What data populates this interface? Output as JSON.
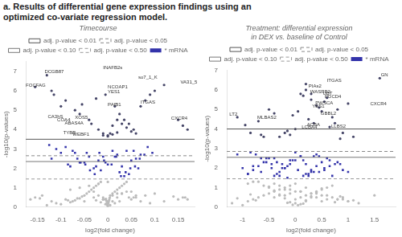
{
  "chart_data": [
    {
      "type": "scatter",
      "title": "a. Results of differential gene expression findings using an\noptimized co-variate regression model.",
      "subtitle": "Timecourse",
      "xlabel": "log2(fold change)",
      "ylabel": "-log10(p-values)",
      "xlim": [
        -0.175,
        0.185
      ],
      "ylim": [
        0,
        7.5
      ],
      "xticks": [
        -0.15,
        -0.1,
        -0.05,
        0,
        0.05,
        0.1,
        0.15
      ],
      "yticks": [
        0,
        1,
        2,
        3,
        4,
        5,
        6,
        7
      ],
      "grid": false,
      "legend": "top",
      "series": [
        {
          "color": "#BBBBBB",
          "marker": "circle",
          "x": [
            -0.155,
            -0.145,
            -0.13,
            -0.12,
            -0.11,
            -0.1,
            -0.09,
            -0.085,
            -0.08,
            -0.075,
            -0.07,
            -0.065,
            -0.06,
            -0.055,
            -0.05,
            -0.045,
            -0.04,
            -0.035,
            -0.03,
            -0.025,
            -0.02,
            -0.015,
            -0.01,
            -0.005,
            0.0,
            0.005,
            0.01,
            0.015,
            0.02,
            0.025,
            0.03,
            0.035,
            0.04,
            0.045,
            0.05,
            0.055,
            0.06,
            0.07,
            0.08,
            0.09,
            0.1,
            0.12,
            0.15,
            0.16,
            -0.08,
            -0.06,
            -0.04,
            -0.02,
            0.0,
            0.02,
            0.04,
            0.06,
            -0.03,
            -0.01,
            0.01,
            0.03,
            0.05,
            -0.05,
            0.0,
            0.01,
            -0.01,
            0.02,
            -0.02,
            0.03,
            -0.03,
            0.005,
            -0.005,
            0.015,
            -0.015,
            0.025,
            -0.025,
            0.0,
            0.0,
            -0.001,
            0.001,
            -0.002,
            0.002,
            -0.003,
            0.003,
            -0.004,
            0.004,
            0.17,
            -0.165,
            0.165,
            0.14,
            -0.14
          ],
          "values": [
            0.5,
            0.45,
            0.1,
            0.3,
            0.2,
            0.15,
            0.4,
            0.35,
            0.25,
            0.3,
            0.35,
            0.45,
            0.45,
            0.55,
            0.6,
            0.7,
            0.8,
            0.9,
            1.0,
            1.1,
            1.2,
            1.3,
            0.5,
            0.4,
            0.3,
            0.6,
            0.7,
            0.8,
            0.9,
            1.0,
            1.1,
            1.2,
            1.3,
            0.5,
            0.4,
            0.5,
            0.5,
            0.3,
            0.6,
            0.2,
            0.7,
            0.3,
            0.4,
            0.5,
            0.9,
            1.0,
            1.1,
            1.2,
            1.3,
            0.7,
            0.8,
            0.6,
            0.5,
            0.4,
            0.6,
            0.7,
            0.8,
            0.3,
            0.2,
            0.3,
            0.4,
            0.5,
            0.6,
            0.7,
            0.8,
            0.1,
            0.15,
            0.2,
            0.25,
            0.3,
            0.35,
            0.05,
            0.08,
            0.12,
            0.18,
            0.22,
            0.28,
            0.32,
            0.38,
            0.42,
            0.48,
            0.4,
            0.4,
            0.5,
            0.55,
            0.6
          ]
        },
        {
          "name": "* mRNA",
          "color": "#3333AA",
          "marker": "square",
          "x": [
            -0.12,
            -0.1,
            -0.08,
            -0.06,
            -0.04,
            -0.02,
            0.0,
            0.02,
            0.04,
            0.06,
            -0.09,
            -0.07,
            -0.05,
            -0.03,
            -0.01,
            0.01,
            0.03,
            0.05,
            0.07,
            -0.11,
            -0.085,
            -0.065,
            -0.045,
            -0.025,
            -0.005,
            0.015,
            0.035,
            0.055,
            0.025,
            0.045,
            -0.015,
            0.065,
            0.008,
            -0.008,
            0.018,
            -0.018,
            0.028,
            -0.028,
            0.038,
            -0.038,
            0.048,
            0.058,
            -0.048,
            -0.058,
            0.068,
            0.078,
            -0.125,
            0.085,
            -0.075,
            0.095
          ],
          "values": [
            2.5,
            2.8,
            2.1,
            2.3,
            2.6,
            2.4,
            2.2,
            2.7,
            2.9,
            2.5,
            3.1,
            2.8,
            2.3,
            2.0,
            2.6,
            2.9,
            2.1,
            2.4,
            2.7,
            3.0,
            2.2,
            2.5,
            2.8,
            2.1,
            2.3,
            2.6,
            1.6,
            2.9,
            1.8,
            1.7,
            1.9,
            2.0,
            2.2,
            2.4,
            2.6,
            2.8,
            1.6,
            1.7,
            1.8,
            1.9,
            2.0,
            2.1,
            2.2,
            2.3,
            2.5,
            2.7,
            3.2,
            3.1,
            2.9,
            2.8
          ]
        },
        {
          "color": "#444466",
          "marker": "circle",
          "x": [
            -0.155,
            -0.13,
            -0.12,
            -0.115,
            -0.1,
            -0.09,
            -0.07,
            -0.06,
            -0.055,
            -0.04,
            -0.035,
            -0.02,
            -0.01,
            0.0,
            0.005,
            0.01,
            0.02,
            0.03,
            0.04,
            0.05,
            0.06,
            0.07,
            0.08,
            0.09,
            0.1,
            0.12,
            0.15,
            0.16,
            0.17,
            -0.025,
            -0.005,
            0.015,
            0.025,
            0.035,
            0.045,
            0.055,
            0.0,
            0.01,
            -0.01,
            0.02
          ],
          "values": [
            6.2,
            6.8,
            6.0,
            5.8,
            5.2,
            5.5,
            5.0,
            4.8,
            5.3,
            4.5,
            4.3,
            4.0,
            3.8,
            3.7,
            3.8,
            4.2,
            4.5,
            4.3,
            4.1,
            3.9,
            3.8,
            5.2,
            5.5,
            5.8,
            6.0,
            6.3,
            4.5,
            4.2,
            4.0,
            5.6,
            5.8,
            5.2,
            4.8,
            4.5,
            4.3,
            4.0,
            3.65,
            3.75,
            3.7,
            3.85
          ]
        },
        {
          "name": "adj. p-value < 0.01",
          "type": "hline",
          "color": "#555555",
          "line_style": "solid",
          "values": [
            3.5
          ]
        },
        {
          "name": "adj. p-value < 0.05",
          "type": "hline",
          "color": "#888888",
          "line_style": "dashed",
          "values": [
            2.65
          ]
        },
        {
          "name": "adj. p-value < 0.10",
          "type": "hline",
          "color": "#777777",
          "line_style": "solid",
          "values": [
            2.35
          ]
        },
        {
          "name": "adj. p-value < 0.50",
          "type": "hline",
          "color": "#999999",
          "line_style": "dashed",
          "values": [
            1.45
          ]
        }
      ],
      "annotations": [
        {
          "text": "INAFB2s",
          "x": -0.01,
          "y": 7.05
        },
        {
          "text": "DCGB87",
          "x": -0.135,
          "y": 6.85
        },
        {
          "text": "so7_1_K",
          "x": 0.065,
          "y": 6.55
        },
        {
          "text": "VA31_5",
          "x": 0.155,
          "y": 6.3
        },
        {
          "text": "FOCFAG",
          "x": -0.175,
          "y": 6.15
        },
        {
          "text": "NCOAP1",
          "x": 0.0,
          "y": 6.05
        },
        {
          "text": "YES1",
          "x": 0.0,
          "y": 5.8
        },
        {
          "text": "ITGAS",
          "x": 0.07,
          "y": 5.3
        },
        {
          "text": "PAfB1",
          "x": 0.0,
          "y": 5.15
        },
        {
          "text": "CXCR4",
          "x": 0.135,
          "y": 4.45
        },
        {
          "text": "TYBB",
          "x": -0.095,
          "y": 3.72
        },
        {
          "text": "WEBF1",
          "x": -0.075,
          "y": 3.62
        },
        {
          "text": "CA3hS",
          "x": -0.128,
          "y": 4.55
        },
        {
          "text": "COA4",
          "x": -0.108,
          "y": 4.35
        },
        {
          "text": "ABAS4A",
          "x": -0.092,
          "y": 4.2
        },
        {
          "text": "XOS5",
          "x": -0.07,
          "y": 4.5
        }
      ]
    },
    {
      "type": "scatter",
      "subtitle": "Treatment: differential expression\nin DEX vs. baseline of Control",
      "xlabel": "log2(fold change)",
      "ylabel": "-log10(p-values)",
      "xlim": [
        -1.3,
        1.9
      ],
      "ylim": [
        0,
        7.0
      ],
      "xticks": [
        -1,
        -0.5,
        0,
        0.5,
        1,
        1.5
      ],
      "yticks": [
        0,
        1,
        2,
        3,
        4,
        5,
        6,
        7
      ],
      "grid": false,
      "legend": "top",
      "series": [
        {
          "color": "#BBBBBB",
          "marker": "circle",
          "x": [
            -1.2,
            -1.0,
            -0.9,
            -0.8,
            -0.7,
            -0.6,
            -0.5,
            -0.4,
            -0.3,
            -0.2,
            -0.1,
            0.0,
            0.1,
            0.2,
            0.3,
            0.4,
            0.5,
            0.6,
            0.7,
            0.8,
            0.9,
            1.0,
            1.2,
            1.5,
            -0.9,
            -0.7,
            -0.5,
            -0.3,
            -0.1,
            0.1,
            0.3,
            0.5,
            0.7,
            0.9,
            -0.8,
            -0.6,
            -0.4,
            -0.2,
            0.0,
            0.2,
            0.4,
            0.6,
            0.8,
            1.0,
            -0.4,
            -0.2,
            0.0,
            0.2,
            0.4,
            0.6,
            -0.3,
            -0.1,
            0.1,
            0.3,
            0.5,
            0.0,
            0.1,
            -0.1,
            0.2,
            -0.2,
            0.3,
            -0.3,
            0.4,
            -0.4,
            0.5,
            -0.5,
            0.05,
            -0.05,
            0.15,
            -0.15,
            1.1,
            -1.1,
            0.85,
            -0.85,
            0.75,
            -0.75
          ],
          "values": [
            0.2,
            0.1,
            0.3,
            0.4,
            0.5,
            0.6,
            0.7,
            0.8,
            0.9,
            1.0,
            1.1,
            1.2,
            0.5,
            0.6,
            0.7,
            0.8,
            0.9,
            1.0,
            1.1,
            0.4,
            0.5,
            0.3,
            0.2,
            0.6,
            1.2,
            1.3,
            1.0,
            1.1,
            0.9,
            0.8,
            0.7,
            0.6,
            0.5,
            0.4,
            1.3,
            1.1,
            1.2,
            0.9,
            0.8,
            1.0,
            0.7,
            0.6,
            0.4,
            0.3,
            0.5,
            0.6,
            0.4,
            0.3,
            0.5,
            0.4,
            0.6,
            0.7,
            0.8,
            0.5,
            0.3,
            0.2,
            0.15,
            0.25,
            0.35,
            0.45,
            0.55,
            0.65,
            0.75,
            0.85,
            0.95,
            1.05,
            0.1,
            0.12,
            0.18,
            0.22,
            0.35,
            0.45,
            0.55,
            0.65,
            0.25,
            0.35
          ]
        },
        {
          "name": "* mRNA",
          "color": "#3333AA",
          "marker": "square",
          "x": [
            -1.1,
            -0.9,
            -0.8,
            -0.7,
            -0.6,
            -0.5,
            -0.4,
            -0.3,
            -0.2,
            -0.1,
            0.0,
            0.1,
            0.2,
            0.3,
            0.4,
            0.5,
            0.6,
            0.7,
            -0.85,
            -0.65,
            -0.45,
            -0.25,
            -0.05,
            0.15,
            0.35,
            0.55,
            0.75,
            -0.75,
            -0.55,
            -0.35,
            -0.15,
            0.05,
            0.25,
            0.45,
            0.65,
            0.85,
            0.25,
            0.45,
            -0.25,
            -0.45,
            0.15,
            0.35,
            -0.15,
            -0.35,
            0.55,
            0.65,
            -0.55,
            -0.65,
            0.0,
            0.1,
            -0.1,
            0.2,
            -0.2,
            0.3,
            -0.3,
            0.4,
            -0.4,
            0.8,
            -0.8,
            0.9,
            -0.9,
            1.0,
            -1.0
          ],
          "values": [
            2.7,
            1.7,
            1.9,
            2.1,
            2.3,
            2.5,
            1.6,
            1.8,
            2.0,
            2.2,
            2.4,
            2.6,
            1.7,
            1.9,
            2.1,
            2.3,
            2.5,
            1.6,
            2.8,
            1.8,
            2.0,
            2.2,
            2.4,
            1.6,
            1.8,
            2.0,
            2.2,
            2.7,
            2.5,
            2.3,
            2.1,
            1.9,
            1.7,
            2.6,
            2.4,
            2.2,
            1.6,
            1.8,
            2.0,
            2.2,
            2.4,
            2.6,
            1.5,
            1.7,
            1.9,
            2.1,
            2.3,
            2.5,
            2.8,
            2.6,
            2.4,
            2.2,
            2.0,
            1.8,
            1.6,
            2.7,
            2.5,
            2.3,
            2.1,
            1.9,
            1.7,
            1.8,
            2.0
          ]
        },
        {
          "color": "#444466",
          "marker": "circle",
          "x": [
            -1.1,
            -0.95,
            -0.85,
            -0.7,
            -0.5,
            -0.4,
            -0.3,
            -0.2,
            0.0,
            0.1,
            0.2,
            0.3,
            0.4,
            0.5,
            0.6,
            0.7,
            0.8,
            1.0,
            1.6,
            0.25,
            0.35,
            0.45,
            0.55,
            0.15,
            -0.1,
            -0.15,
            0.65,
            0.75,
            0.85,
            0.2,
            0.3,
            -0.05,
            0.05,
            -0.6,
            -0.65,
            0.9,
            1.1
          ],
          "values": [
            4.6,
            4.2,
            3.8,
            4.4,
            5.0,
            4.8,
            3.6,
            3.8,
            4.0,
            5.8,
            6.3,
            5.5,
            5.2,
            4.9,
            5.6,
            4.6,
            5.0,
            5.3,
            6.6,
            4.5,
            4.3,
            5.1,
            5.4,
            5.7,
            3.7,
            3.9,
            4.1,
            4.3,
            3.5,
            6.0,
            5.8,
            4.7,
            4.9,
            3.6,
            3.7,
            3.8,
            3.6
          ]
        },
        {
          "name": "adj. p-value < 0.01",
          "type": "hline",
          "color": "#555555",
          "line_style": "solid",
          "values": [
            4.0
          ]
        },
        {
          "name": "adj. p-value < 0.05",
          "type": "hline",
          "color": "#888888",
          "line_style": "dashed",
          "values": [
            2.85
          ]
        },
        {
          "name": "adj. p-value < 0.10",
          "type": "hline",
          "color": "#777777",
          "line_style": "solid",
          "values": [
            2.55
          ]
        },
        {
          "name": "adj. p-value < 0.50",
          "type": "hline",
          "color": "#999999",
          "line_style": "dashed",
          "values": [
            1.45
          ]
        }
      ],
      "annotations": [
        {
          "text": "GN",
          "x": 1.62,
          "y": 6.65
        },
        {
          "text": "ITGAS",
          "x": 0.6,
          "y": 6.35
        },
        {
          "text": "PIAs2",
          "x": 0.25,
          "y": 6.05
        },
        {
          "text": "WASRP2",
          "x": 0.28,
          "y": 5.78
        },
        {
          "text": "UBT",
          "x": 0.52,
          "y": 5.68
        },
        {
          "text": "PDCD4",
          "x": 0.56,
          "y": 5.52
        },
        {
          "text": "PWSCA",
          "x": 0.38,
          "y": 5.2
        },
        {
          "text": "YES1",
          "x": 0.32,
          "y": 5.02
        },
        {
          "text": "GBBL2",
          "x": 0.48,
          "y": 4.65
        },
        {
          "text": "CXCR4",
          "x": 1.42,
          "y": 5.18
        },
        {
          "text": "LT2",
          "x": -1.25,
          "y": 4.62
        },
        {
          "text": "MLBAS2",
          "x": -0.72,
          "y": 4.48
        },
        {
          "text": "ACBA",
          "x": 0.22,
          "y": 4.08
        },
        {
          "text": "LCBA4",
          "x": 0.12,
          "y": 3.98
        },
        {
          "text": "LLBS2",
          "x": 0.68,
          "y": 4.02
        }
      ]
    }
  ]
}
